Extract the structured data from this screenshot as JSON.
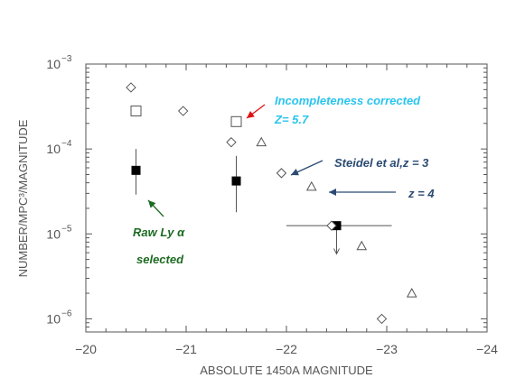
{
  "chart_data": {
    "type": "scatter",
    "title": "",
    "xlabel": "ABSOLUTE 1450A MAGNITUDE",
    "ylabel": "NUMBER/MPC³/MAGNITUDE",
    "xlim": [
      -20,
      -24
    ],
    "ylim": [
      7e-07,
      0.001
    ],
    "yscale": "log",
    "x_ticks": [
      -20,
      -21,
      -22,
      -23,
      -24
    ],
    "x_tick_labels": [
      "−20",
      "−21",
      "−22",
      "−23",
      "−24"
    ],
    "y_ticks": [
      {
        "value": 1e-06,
        "base": "10",
        "exp": "−6"
      },
      {
        "value": 1e-05,
        "base": "10",
        "exp": "−5"
      },
      {
        "value": 0.0001,
        "base": "10",
        "exp": "−4"
      },
      {
        "value": 0.001,
        "base": "10",
        "exp": "−3"
      }
    ],
    "series": [
      {
        "marker": "filled-square",
        "color": "#000000",
        "points": [
          {
            "x": -20.5,
            "y": 5.6e-05,
            "ylo": 2.9e-05,
            "yhi": 0.0001
          },
          {
            "x": -21.5,
            "y": 4.2e-05,
            "ylo": 1.8e-05,
            "yhi": 8.3e-05
          },
          {
            "x": -22.5,
            "y": 1.25e-05,
            "xlo": -22.0,
            "xhi": -23.05,
            "upper_limit": true,
            "arrow_to": 5.8e-06
          }
        ]
      },
      {
        "marker": "open-square",
        "color": "#555555",
        "points": [
          {
            "x": -20.5,
            "y": 0.00028
          },
          {
            "x": -21.5,
            "y": 0.00021
          }
        ]
      },
      {
        "marker": "diamond",
        "color": "#555555",
        "points": [
          {
            "x": -20.45,
            "y": 0.00053
          },
          {
            "x": -20.97,
            "y": 0.00028
          },
          {
            "x": -21.45,
            "y": 0.00012
          },
          {
            "x": -21.95,
            "y": 5.2e-05
          },
          {
            "x": -22.45,
            "y": 1.25e-05
          },
          {
            "x": -22.95,
            "y": 1e-06
          }
        ]
      },
      {
        "marker": "triangle",
        "color": "#555555",
        "points": [
          {
            "x": -21.75,
            "y": 0.00012
          },
          {
            "x": -22.25,
            "y": 3.6e-05
          },
          {
            "x": -22.75,
            "y": 7.2e-06
          },
          {
            "x": -23.25,
            "y": 2e-06
          }
        ]
      }
    ],
    "annotations": [
      {
        "id": "incompleteness",
        "lines": [
          "Incompleteness corrected",
          "Z= 5.7"
        ],
        "color": "#29c4ef",
        "arrow_color": "#e01010"
      },
      {
        "id": "steidel-z3",
        "lines": [
          "Steidel  et al,z = 3"
        ],
        "color": "#2a4a72",
        "arrow_color": "#2a4a72"
      },
      {
        "id": "z4",
        "lines": [
          "z = 4"
        ],
        "color": "#2a4a72",
        "arrow_color": "#2a4a72"
      },
      {
        "id": "raw-lya",
        "lines": [
          "Raw Ly  α",
          "selected"
        ],
        "color": "#1d6b22",
        "arrow_color": "#1d6b22"
      }
    ]
  }
}
